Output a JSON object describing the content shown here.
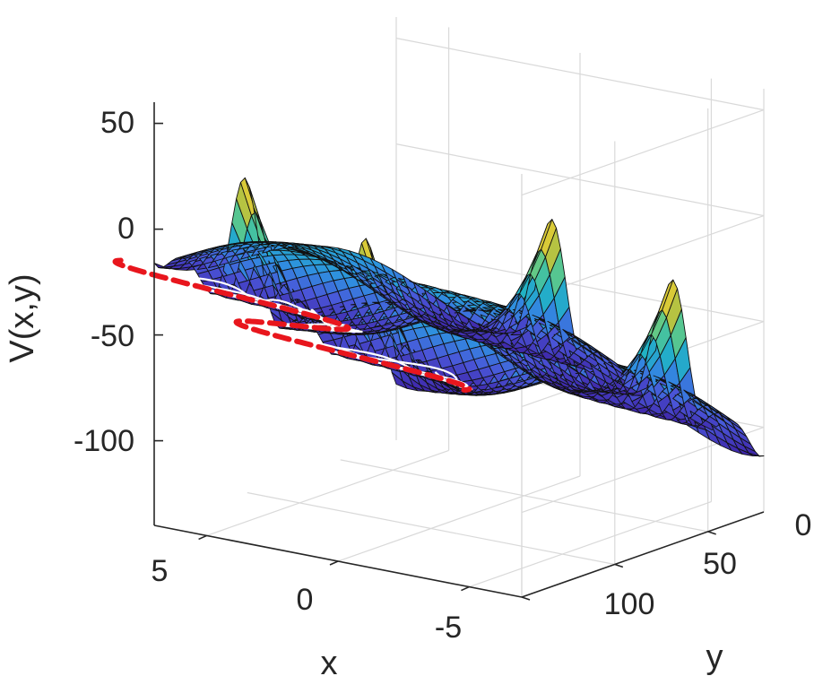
{
  "chart_data": {
    "type": "surface3d",
    "title": "",
    "xlabel": "x",
    "ylabel": "y",
    "zlabel": "V(x,y)",
    "xlim": [
      -7,
      7
    ],
    "ylim": [
      0,
      130
    ],
    "zlim": [
      -140,
      60
    ],
    "x_ticks": [
      5,
      0,
      -5
    ],
    "y_ticks": [
      0,
      50,
      100
    ],
    "z_ticks": [
      50,
      0,
      -50,
      -100
    ],
    "grid": true,
    "colormap": [
      "#3e26a8",
      "#4a55d8",
      "#2f8fe0",
      "#20b5c2",
      "#5ec98a",
      "#c4c236",
      "#f5d43a"
    ],
    "surface": {
      "description_function": "double-well potential in x with wells shifting sinusoidally along y",
      "x_range": [
        -7,
        7
      ],
      "y_range": [
        0,
        130
      ],
      "well_amplitude": 3.2,
      "well_period_y": 65
    },
    "series": [
      {
        "type": "line",
        "color": "#e8161d",
        "style": "dashed",
        "values_note": ""
      },
      {
        "type": "line",
        "color": "#ffffff",
        "style": "solid",
        "values_note": ""
      }
    ]
  }
}
